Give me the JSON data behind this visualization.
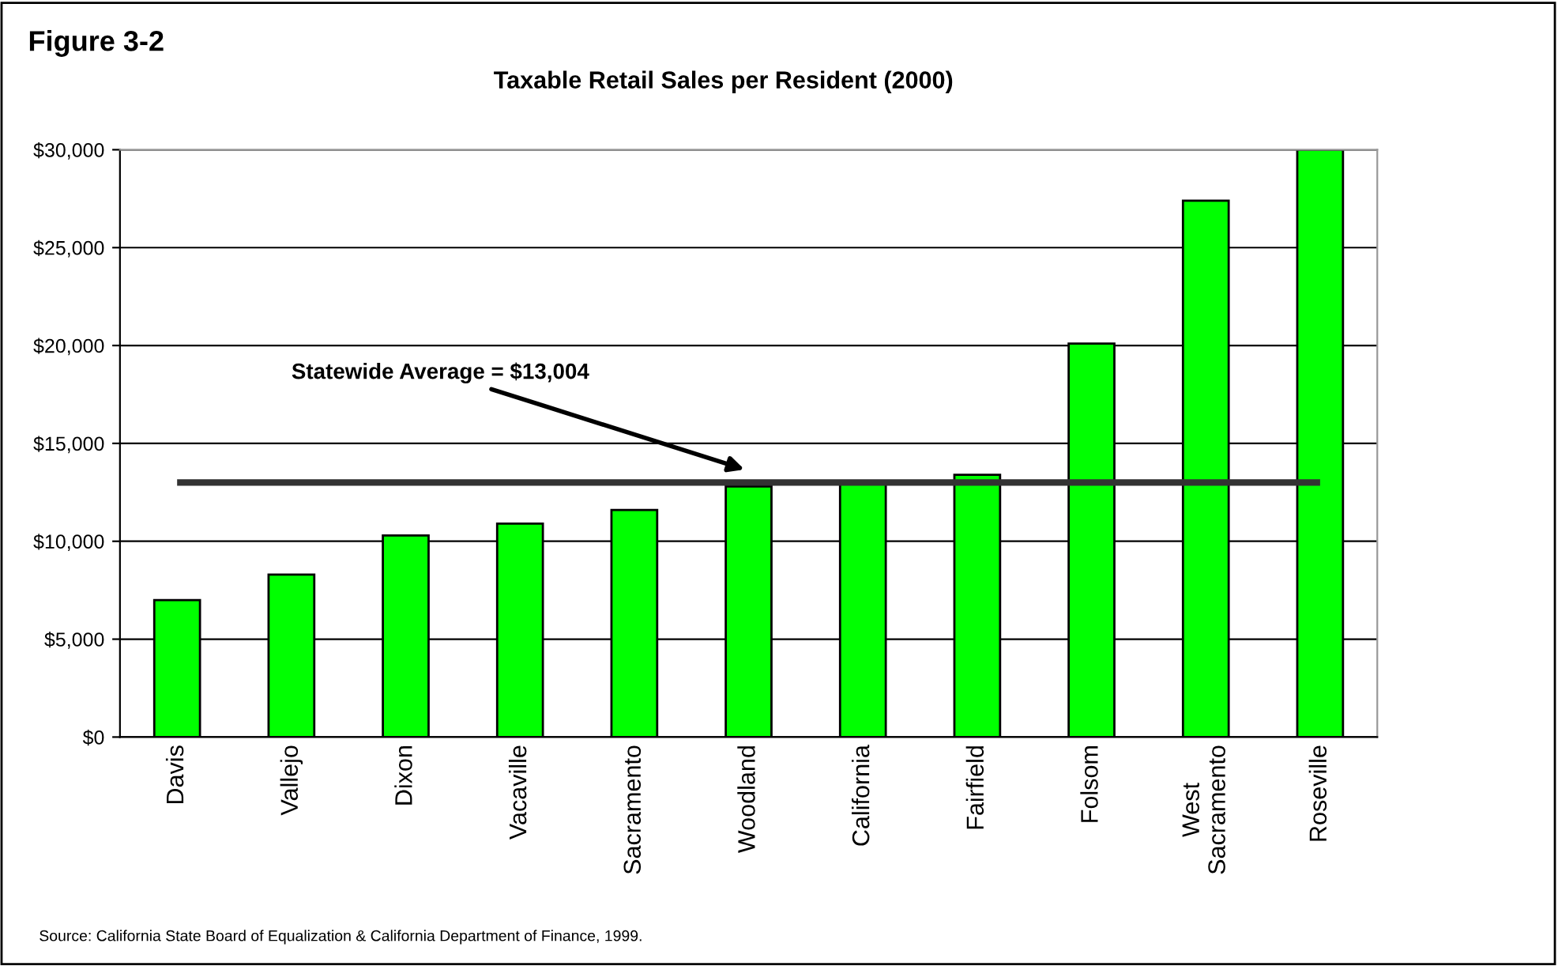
{
  "chart_data": {
    "type": "bar",
    "title": "Taxable Retail Sales per Resident (2000)",
    "categories": [
      "Davis",
      "Vallejo",
      "Dixon",
      "Vacaville",
      "Sacramento",
      "Woodland",
      "California",
      "Fairfield",
      "Folsom",
      "West\nSacramento",
      "Roseville"
    ],
    "values": [
      7000,
      8300,
      10300,
      10900,
      11600,
      12800,
      13000,
      13400,
      20100,
      27400,
      30000
    ],
    "color": "#00ff00",
    "ylim": [
      0,
      30000
    ],
    "yticks": [
      {
        "value": 0,
        "label": "$0"
      },
      {
        "value": 5000,
        "label": "$5,000"
      },
      {
        "value": 10000,
        "label": "$10,000"
      },
      {
        "value": 15000,
        "label": "$15,000"
      },
      {
        "value": 20000,
        "label": "$20,000"
      },
      {
        "value": 25000,
        "label": "$25,000"
      },
      {
        "value": 30000,
        "label": "$30,000"
      }
    ],
    "grid": "y",
    "ref_lines": [
      {
        "axis": "y",
        "value": 13004,
        "color": "#333333"
      }
    ],
    "annotations": [
      "Figure 3-2",
      "Source: California State Board of Equalization & California Department of Finance, 1999.",
      "Statewide Average = $13,004"
    ]
  }
}
